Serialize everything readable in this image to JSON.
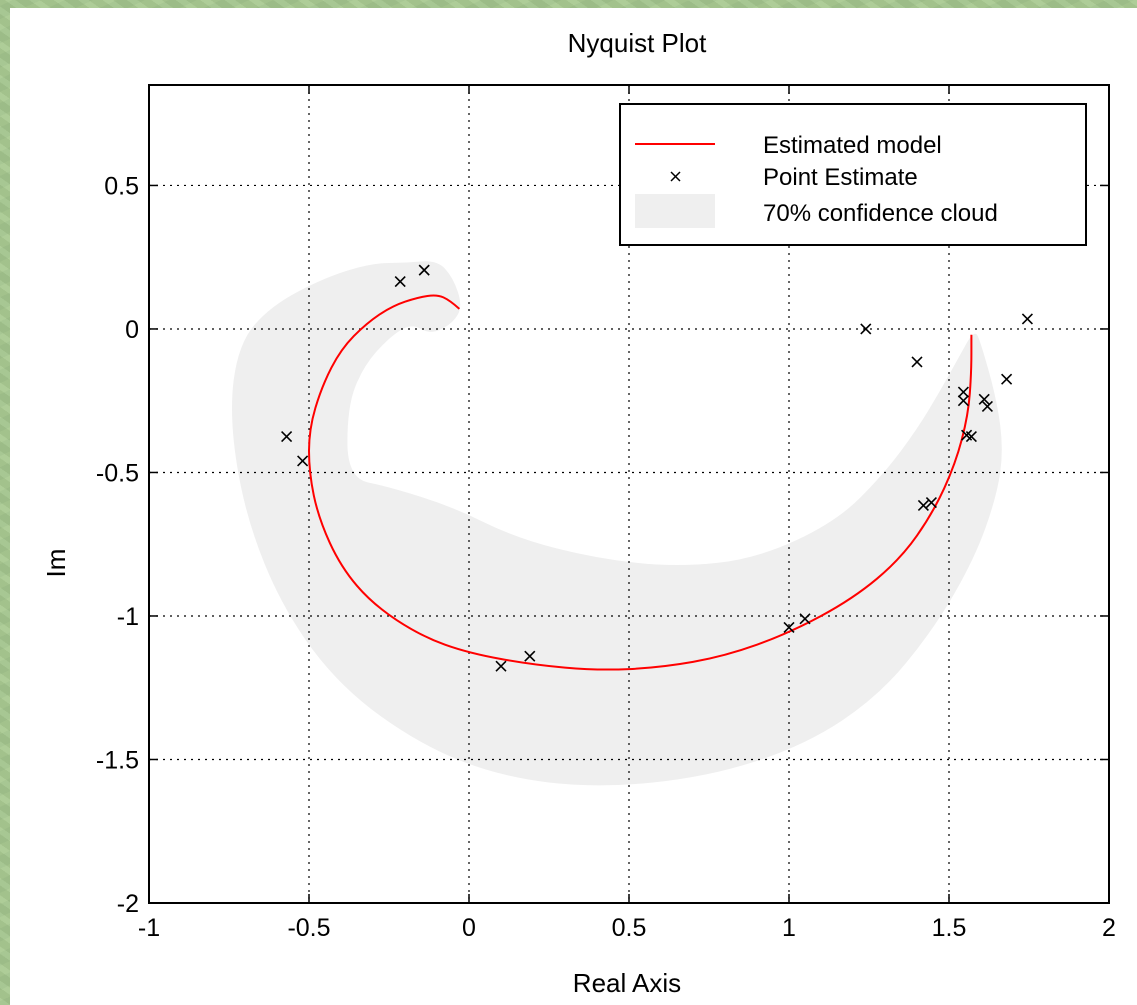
{
  "chart_data": {
    "type": "line",
    "title": "Nyquist Plot",
    "xlabel": "Real Axis",
    "ylabel": "Im",
    "xlim": [
      -1,
      2
    ],
    "ylim": [
      -2,
      0.85
    ],
    "xticks": [
      -1,
      -0.5,
      0,
      0.5,
      1,
      1.5,
      2
    ],
    "xtick_labels": [
      "-1",
      "-0.5",
      "0",
      "0.5",
      "1",
      "1.5",
      "2"
    ],
    "yticks": [
      -2,
      -1.5,
      -1,
      -0.5,
      0,
      0.5
    ],
    "ytick_labels": [
      "-2",
      "-1.5",
      "-1",
      "-0.5",
      "0",
      "0.5"
    ],
    "grid": true,
    "legend_position": "top-right",
    "colors": {
      "model": "#ff0000",
      "points": "#000000",
      "cloud": "#efefef",
      "grid": "#000000"
    },
    "series": [
      {
        "name": "Estimated model",
        "kind": "line",
        "points": [
          [
            -0.03,
            0.07
          ],
          [
            -0.06,
            0.1
          ],
          [
            -0.1,
            0.12
          ],
          [
            -0.16,
            0.11
          ],
          [
            -0.24,
            0.08
          ],
          [
            -0.32,
            0.02
          ],
          [
            -0.4,
            -0.07
          ],
          [
            -0.46,
            -0.2
          ],
          [
            -0.5,
            -0.35
          ],
          [
            -0.5,
            -0.5
          ],
          [
            -0.47,
            -0.66
          ],
          [
            -0.4,
            -0.83
          ],
          [
            -0.3,
            -0.96
          ],
          [
            -0.15,
            -1.07
          ],
          [
            0.0,
            -1.13
          ],
          [
            0.2,
            -1.17
          ],
          [
            0.4,
            -1.19
          ],
          [
            0.6,
            -1.18
          ],
          [
            0.8,
            -1.14
          ],
          [
            1.0,
            -1.06
          ],
          [
            1.2,
            -0.94
          ],
          [
            1.35,
            -0.8
          ],
          [
            1.45,
            -0.64
          ],
          [
            1.52,
            -0.47
          ],
          [
            1.56,
            -0.3
          ],
          [
            1.57,
            -0.15
          ],
          [
            1.57,
            -0.02
          ]
        ]
      },
      {
        "name": "Point Estimate",
        "kind": "markers",
        "points": [
          [
            -0.215,
            0.165
          ],
          [
            -0.14,
            0.205
          ],
          [
            -0.57,
            -0.375
          ],
          [
            -0.52,
            -0.46
          ],
          [
            0.1,
            -1.175
          ],
          [
            0.19,
            -1.14
          ],
          [
            1.0,
            -1.04
          ],
          [
            1.05,
            -1.01
          ],
          [
            1.24,
            0.0
          ],
          [
            1.745,
            0.035
          ],
          [
            1.4,
            -0.115
          ],
          [
            1.68,
            -0.175
          ],
          [
            1.545,
            -0.22
          ],
          [
            1.545,
            -0.25
          ],
          [
            1.61,
            -0.245
          ],
          [
            1.62,
            -0.27
          ],
          [
            1.555,
            -0.37
          ],
          [
            1.57,
            -0.375
          ],
          [
            1.42,
            -0.615
          ],
          [
            1.445,
            -0.605
          ]
        ]
      },
      {
        "name": "70% confidence cloud",
        "kind": "region",
        "points": [
          [
            -0.2,
            0.23
          ],
          [
            -0.1,
            0.24
          ],
          [
            -0.05,
            0.18
          ],
          [
            -0.02,
            0.08
          ],
          [
            -0.05,
            0.02
          ],
          [
            -0.12,
            -0.02
          ],
          [
            -0.18,
            0.02
          ],
          [
            -0.25,
            -0.03
          ],
          [
            -0.33,
            -0.13
          ],
          [
            -0.38,
            -0.27
          ],
          [
            -0.38,
            -0.52
          ],
          [
            -0.25,
            -0.55
          ],
          [
            -0.05,
            -0.62
          ],
          [
            0.15,
            -0.73
          ],
          [
            0.4,
            -0.8
          ],
          [
            0.65,
            -0.83
          ],
          [
            0.9,
            -0.8
          ],
          [
            1.15,
            -0.67
          ],
          [
            1.3,
            -0.5
          ],
          [
            1.4,
            -0.35
          ],
          [
            1.47,
            -0.22
          ],
          [
            1.53,
            -0.1
          ],
          [
            1.58,
            0.0
          ],
          [
            1.6,
            -0.05
          ],
          [
            1.65,
            -0.25
          ],
          [
            1.67,
            -0.42
          ],
          [
            1.65,
            -0.58
          ],
          [
            1.58,
            -0.8
          ],
          [
            1.45,
            -1.05
          ],
          [
            1.28,
            -1.28
          ],
          [
            1.05,
            -1.45
          ],
          [
            0.75,
            -1.56
          ],
          [
            0.4,
            -1.6
          ],
          [
            0.1,
            -1.56
          ],
          [
            -0.15,
            -1.45
          ],
          [
            -0.4,
            -1.25
          ],
          [
            -0.58,
            -0.98
          ],
          [
            -0.7,
            -0.65
          ],
          [
            -0.75,
            -0.3
          ],
          [
            -0.72,
            -0.05
          ],
          [
            -0.62,
            0.08
          ],
          [
            -0.45,
            0.18
          ],
          [
            -0.3,
            0.23
          ]
        ]
      }
    ]
  }
}
